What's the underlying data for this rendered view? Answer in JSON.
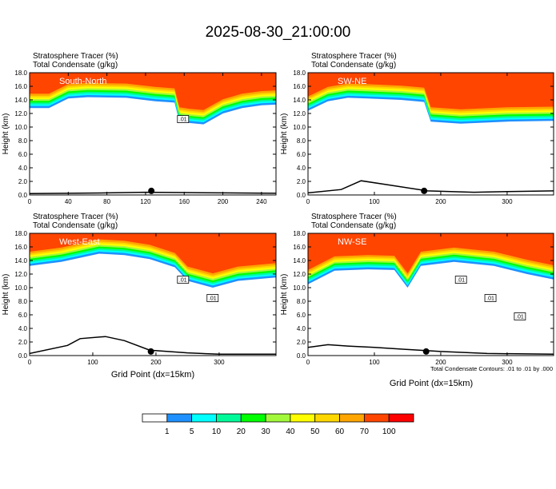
{
  "title": "2025-08-30_21:00:00",
  "panel_line1": "Stratosphere Tracer   (%)",
  "panel_line2": "Total Condensate   (g/kg)",
  "ylabel": "Height (km)",
  "xlabel": "Grid Point (dx=15km)",
  "footnote": "Total Condensate Contours: .01 to .01 by .000",
  "colors": {
    "levels": [
      "#ffffff",
      "#1e90ff",
      "#00ffff",
      "#00fa9a",
      "#00ff00",
      "#a2f83b",
      "#ffff00",
      "#ffd700",
      "#ffa500",
      "#ff4500",
      "#ff0000"
    ],
    "surface": "#000000"
  },
  "colorbar": {
    "labels": [
      "1",
      "5",
      "10",
      "20",
      "30",
      "40",
      "50",
      "60",
      "70",
      "100"
    ]
  },
  "chart_data": [
    {
      "type": "heatmap",
      "label": "South-North",
      "xlim": [
        0,
        255
      ],
      "ylim": [
        0,
        18
      ],
      "xticks": [
        "0",
        "40",
        "80",
        "120",
        "160",
        "200",
        "240"
      ],
      "yticks": [
        "0.0",
        "2.0",
        "4.0",
        "6.0",
        "8.0",
        "10.0",
        "12.0",
        "14.0",
        "16.0",
        "18.0"
      ],
      "contour_labels": [
        ".01"
      ],
      "tracer_bottom_km": {
        "x": [
          0,
          20,
          40,
          60,
          100,
          130,
          150,
          155,
          165,
          180,
          200,
          220,
          240,
          255
        ],
        "y": [
          12.8,
          12.8,
          14.2,
          14.4,
          14.3,
          13.8,
          13.6,
          10.8,
          10.6,
          10.4,
          12.0,
          12.8,
          13.2,
          13.3
        ]
      },
      "terrain_km": {
        "x": [
          0,
          40,
          80,
          120,
          160,
          200,
          255
        ],
        "y": [
          0.2,
          0.25,
          0.3,
          0.4,
          0.35,
          0.3,
          0.25
        ]
      },
      "marker_x": 126
    },
    {
      "type": "heatmap",
      "label": "SW-NE",
      "xlim": [
        0,
        370
      ],
      "ylim": [
        0,
        18
      ],
      "xticks": [
        "0",
        "100",
        "200",
        "300"
      ],
      "yticks": [
        "0.0",
        "2.0",
        "4.0",
        "6.0",
        "8.0",
        "10.0",
        "12.0",
        "14.0",
        "16.0",
        "18.0"
      ],
      "contour_labels": [],
      "tracer_bottom_km": {
        "x": [
          0,
          30,
          60,
          90,
          140,
          175,
          185,
          230,
          300,
          370
        ],
        "y": [
          12.4,
          13.8,
          14.3,
          14.2,
          14.0,
          13.7,
          10.8,
          10.5,
          10.8,
          10.9
        ]
      },
      "terrain_km": {
        "x": [
          0,
          50,
          80,
          120,
          180,
          250,
          300,
          370
        ],
        "y": [
          0.3,
          0.8,
          2.1,
          1.5,
          0.6,
          0.4,
          0.5,
          0.6
        ]
      },
      "marker_x": 175
    },
    {
      "type": "heatmap",
      "label": "West-East",
      "xlim": [
        0,
        390
      ],
      "ylim": [
        0,
        18
      ],
      "xticks": [
        "0",
        "100",
        "200",
        "300"
      ],
      "yticks": [
        "0.0",
        "2.0",
        "4.0",
        "6.0",
        "8.0",
        "10.0",
        "12.0",
        "14.0",
        "16.0",
        "18.0"
      ],
      "contour_labels": [
        ".01",
        ".01"
      ],
      "tracer_bottom_km": {
        "x": [
          0,
          50,
          110,
          150,
          190,
          230,
          250,
          290,
          330,
          390
        ],
        "y": [
          13.2,
          13.8,
          15.0,
          14.8,
          14.2,
          13.0,
          11.0,
          10.0,
          11.0,
          11.5
        ]
      },
      "terrain_km": {
        "x": [
          0,
          60,
          80,
          120,
          150,
          190,
          250,
          300,
          390
        ],
        "y": [
          0.3,
          1.5,
          2.5,
          2.8,
          2.2,
          0.8,
          0.4,
          0.2,
          0.2
        ]
      },
      "marker_x": 192
    },
    {
      "type": "heatmap",
      "label": "NW-SE",
      "xlim": [
        0,
        370
      ],
      "ylim": [
        0,
        18
      ],
      "xticks": [
        "0",
        "100",
        "200",
        "300"
      ],
      "yticks": [
        "0.0",
        "2.0",
        "4.0",
        "6.0",
        "8.0",
        "10.0",
        "12.0",
        "14.0",
        "16.0",
        "18.0"
      ],
      "contour_labels": [
        ".01",
        ".01",
        ".01"
      ],
      "tracer_bottom_km": {
        "x": [
          0,
          40,
          90,
          130,
          150,
          170,
          220,
          280,
          330,
          370
        ],
        "y": [
          10.5,
          12.5,
          12.7,
          12.6,
          10.0,
          13.2,
          13.8,
          13.2,
          12.0,
          11.2
        ]
      },
      "terrain_km": {
        "x": [
          0,
          30,
          60,
          100,
          150,
          200,
          270,
          370
        ],
        "y": [
          1.2,
          1.6,
          1.4,
          1.2,
          0.9,
          0.6,
          0.3,
          0.2
        ]
      },
      "marker_x": 178
    }
  ]
}
